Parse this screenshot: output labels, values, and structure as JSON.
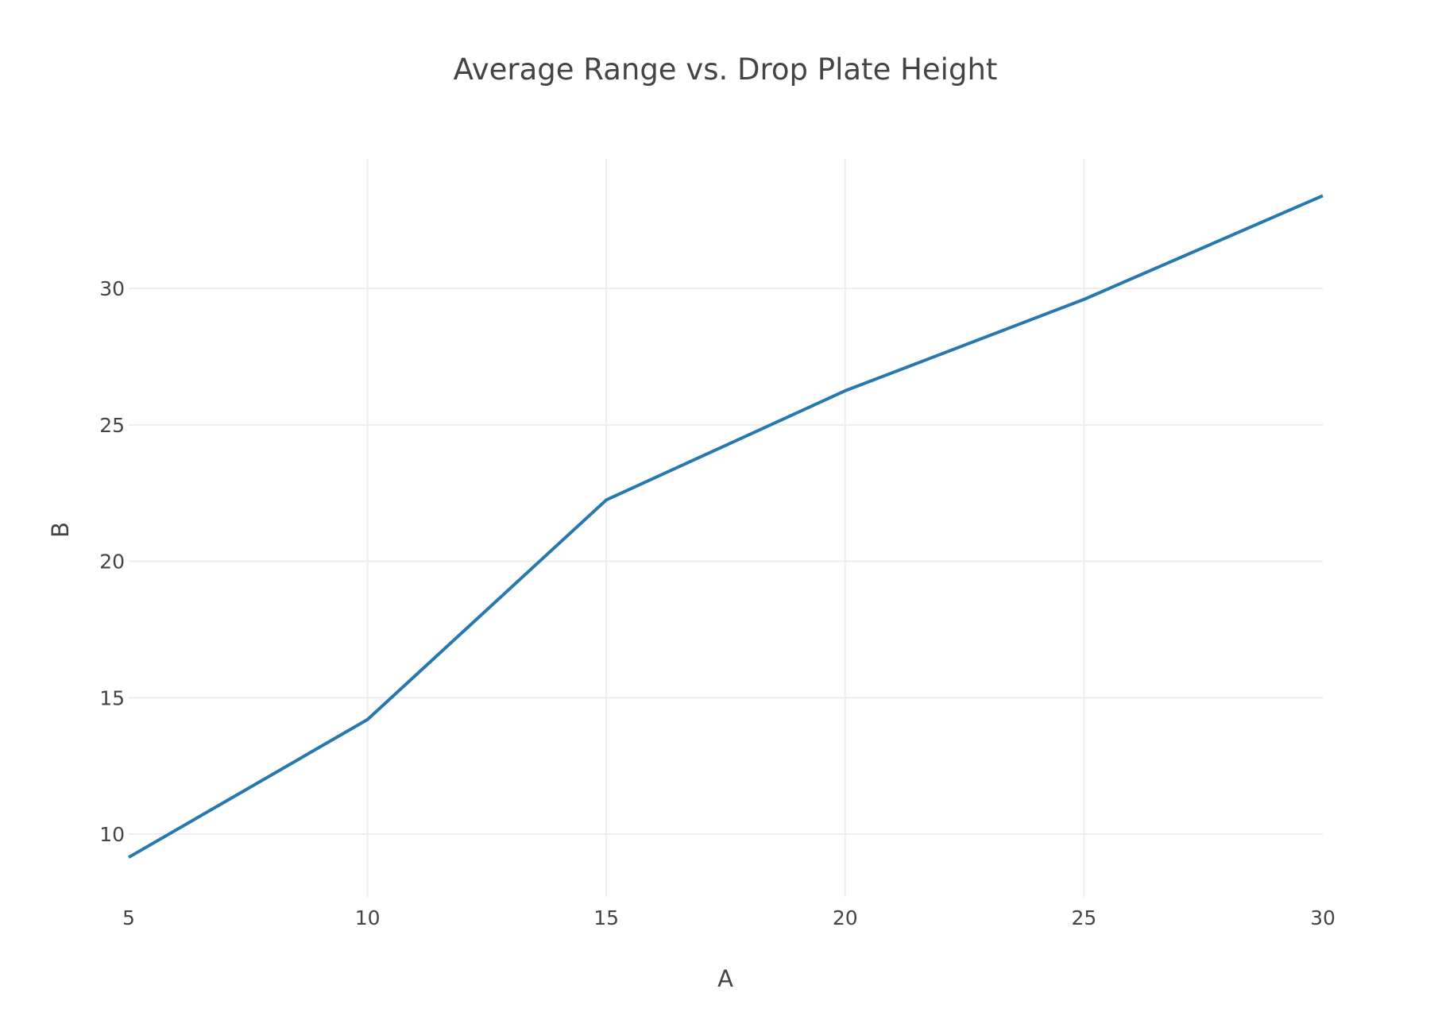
{
  "chart_data": {
    "type": "line",
    "title": "Average Range vs. Drop Plate Height",
    "xlabel": "A",
    "ylabel": "B",
    "x": [
      5,
      10,
      15,
      20,
      25,
      30
    ],
    "series": [
      {
        "values": [
          9.15,
          14.2,
          22.25,
          26.25,
          29.6,
          33.4
        ]
      }
    ],
    "xlim": [
      5,
      30
    ],
    "ylim": [
      7.7,
      34.75
    ],
    "xticks": [
      5,
      10,
      15,
      20,
      25,
      30
    ],
    "yticks": [
      10,
      15,
      20,
      25,
      30
    ],
    "xtick_labels": [
      "5",
      "10",
      "15",
      "20",
      "25",
      "30"
    ],
    "ytick_labels": [
      "10",
      "15",
      "20",
      "25",
      "30"
    ],
    "grid": true,
    "legend": "none",
    "colors": {
      "line": "#2878b0",
      "grid": "#eeeeee",
      "text": "#444444",
      "background": "#ffffff"
    }
  }
}
